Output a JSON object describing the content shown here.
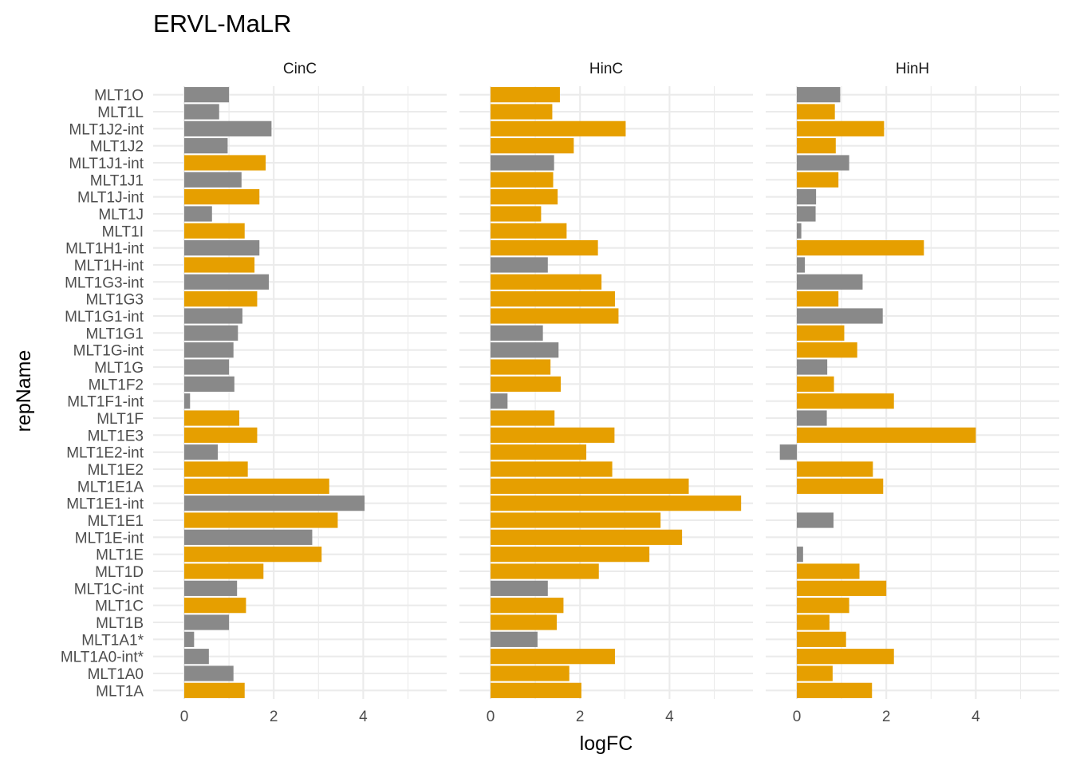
{
  "title": "ERVL-MaLR",
  "colors": {
    "up": "#E69F00",
    "other": "#898989"
  },
  "chart_data": {
    "type": "bar",
    "orientation": "horizontal",
    "title": "ERVL-MaLR",
    "xlabel": "logFC",
    "ylabel": "repName",
    "xlim": [
      -0.4,
      5.6
    ],
    "x_ticks": [
      "0",
      "2",
      "4"
    ],
    "grid": true,
    "legend": "none",
    "categories": [
      "MLT1O",
      "MLT1L",
      "MLT1J2-int",
      "MLT1J2",
      "MLT1J1-int",
      "MLT1J1",
      "MLT1J-int",
      "MLT1J",
      "MLT1I",
      "MLT1H1-int",
      "MLT1H-int",
      "MLT1G3-int",
      "MLT1G3",
      "MLT1G1-int",
      "MLT1G1",
      "MLT1G-int",
      "MLT1G",
      "MLT1F2",
      "MLT1F1-int",
      "MLT1F",
      "MLT1E3",
      "MLT1E2-int",
      "MLT1E2",
      "MLT1E1A",
      "MLT1E1-int",
      "MLT1E1",
      "MLT1E-int",
      "MLT1E",
      "MLT1D",
      "MLT1C-int",
      "MLT1C",
      "MLT1B",
      "MLT1A1*",
      "MLT1A0-int*",
      "MLT1A0",
      "MLT1A"
    ],
    "panels": [
      {
        "name": "CinC",
        "values": [
          1.0,
          0.78,
          1.95,
          0.97,
          1.82,
          1.28,
          1.68,
          0.62,
          1.35,
          1.68,
          1.57,
          1.89,
          1.63,
          1.3,
          1.2,
          1.1,
          1.0,
          1.12,
          0.13,
          1.23,
          1.63,
          0.75,
          1.42,
          3.24,
          4.03,
          3.43,
          2.86,
          3.07,
          1.77,
          1.18,
          1.38,
          1.0,
          0.22,
          0.55,
          1.1,
          1.35
        ],
        "highlight": [
          false,
          false,
          false,
          false,
          true,
          false,
          true,
          false,
          true,
          false,
          true,
          false,
          true,
          false,
          false,
          false,
          false,
          false,
          false,
          true,
          true,
          false,
          true,
          true,
          false,
          true,
          false,
          true,
          true,
          false,
          true,
          false,
          false,
          false,
          false,
          true
        ]
      },
      {
        "name": "HinC",
        "values": [
          1.55,
          1.38,
          3.02,
          1.86,
          1.42,
          1.4,
          1.5,
          1.13,
          1.7,
          2.4,
          1.28,
          2.48,
          2.78,
          2.86,
          1.17,
          1.52,
          1.34,
          1.57,
          0.38,
          1.43,
          2.77,
          2.14,
          2.72,
          4.43,
          5.6,
          3.8,
          4.28,
          3.55,
          2.42,
          1.28,
          1.63,
          1.48,
          1.05,
          2.78,
          1.76,
          2.03
        ],
        "highlight": [
          true,
          true,
          true,
          true,
          false,
          true,
          true,
          true,
          true,
          true,
          false,
          true,
          true,
          true,
          false,
          false,
          true,
          true,
          false,
          true,
          true,
          true,
          true,
          true,
          true,
          true,
          true,
          true,
          true,
          false,
          true,
          true,
          false,
          true,
          true,
          true
        ]
      },
      {
        "name": "HinH",
        "values": [
          0.97,
          0.85,
          1.95,
          0.87,
          1.17,
          0.93,
          0.43,
          0.42,
          0.1,
          2.84,
          0.18,
          1.47,
          0.93,
          1.92,
          1.06,
          1.35,
          0.68,
          0.83,
          2.17,
          0.67,
          4.0,
          -0.38,
          1.7,
          1.93,
          0.0,
          0.82,
          0.0,
          0.14,
          1.4,
          2.0,
          1.17,
          0.73,
          1.1,
          2.17,
          0.8,
          1.68
        ],
        "highlight": [
          false,
          true,
          true,
          true,
          false,
          true,
          false,
          false,
          false,
          true,
          false,
          false,
          true,
          false,
          true,
          true,
          false,
          true,
          true,
          false,
          true,
          false,
          true,
          true,
          false,
          false,
          false,
          false,
          true,
          true,
          true,
          true,
          true,
          true,
          true,
          true
        ]
      }
    ]
  }
}
